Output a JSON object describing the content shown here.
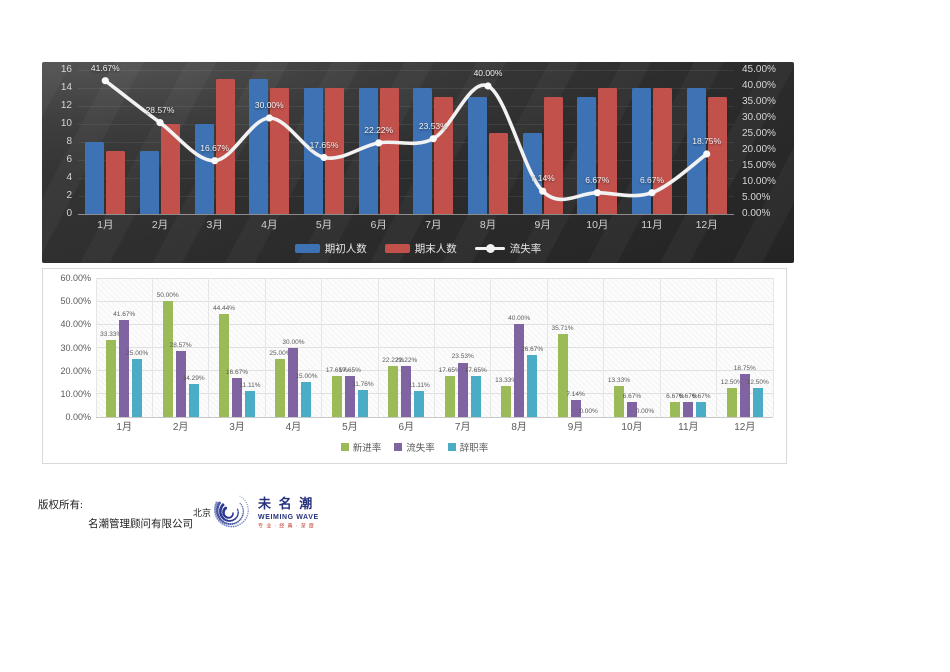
{
  "chart_data": [
    {
      "name": "headcount-turnover-combo",
      "type": "bar+line",
      "theme": {
        "background": "#2e2e2e",
        "text": "#d6d6d6"
      },
      "categories": [
        "1月",
        "2月",
        "3月",
        "4月",
        "5月",
        "6月",
        "7月",
        "8月",
        "9月",
        "10月",
        "11月",
        "12月"
      ],
      "series": [
        {
          "name": "期初人数",
          "type": "bar",
          "axis": "left",
          "color": "#3d72b4",
          "values": [
            8,
            7,
            10,
            15,
            14,
            14,
            14,
            13,
            9,
            13,
            14,
            14
          ]
        },
        {
          "name": "期末人数",
          "type": "bar",
          "axis": "left",
          "color": "#c2514c",
          "values": [
            7,
            10,
            15,
            14,
            14,
            14,
            13,
            9,
            13,
            14,
            14,
            13
          ]
        },
        {
          "name": "流失率",
          "type": "line",
          "axis": "right",
          "color": "#f2f2f2",
          "values": [
            41.67,
            28.57,
            16.67,
            30,
            17.65,
            22.22,
            23.53,
            40,
            7.14,
            6.67,
            6.67,
            18.75
          ]
        }
      ],
      "left_axis": {
        "min": 0,
        "max": 16,
        "ticks": [
          "16",
          "14",
          "12",
          "10",
          "8",
          "6",
          "4",
          "2",
          "0"
        ]
      },
      "right_axis": {
        "min": 0,
        "max": 45,
        "ticks": [
          "45.00%",
          "40.00%",
          "35.00%",
          "30.00%",
          "25.00%",
          "20.00%",
          "15.00%",
          "10.00%",
          "5.00%",
          "0.00%"
        ]
      },
      "legend": [
        {
          "label": "期初人数",
          "marker": "bar",
          "color": "#3d72b4"
        },
        {
          "label": "期末人数",
          "marker": "bar",
          "color": "#c2514c"
        },
        {
          "label": "流失率",
          "marker": "line",
          "color": "#f2f2f2"
        }
      ],
      "legend_position": "bottom",
      "grid": true
    },
    {
      "name": "monthly-rates",
      "type": "bar",
      "theme": {
        "background": "#ffffff",
        "text": "#595959"
      },
      "categories": [
        "1月",
        "2月",
        "3月",
        "4月",
        "5月",
        "6月",
        "7月",
        "8月",
        "9月",
        "10月",
        "11月",
        "12月"
      ],
      "series": [
        {
          "name": "新进率",
          "color": "#9bbb59",
          "values": [
            33.33,
            50,
            44.44,
            25,
            17.65,
            22.22,
            17.65,
            13.33,
            35.71,
            13.33,
            6.67,
            12.5
          ]
        },
        {
          "name": "流失率",
          "color": "#8064a2",
          "values": [
            41.67,
            28.57,
            16.67,
            30,
            17.65,
            22.22,
            23.53,
            40,
            7.14,
            6.67,
            6.67,
            18.75
          ]
        },
        {
          "name": "辞职率",
          "color": "#4bacc6",
          "values": [
            25,
            14.29,
            11.11,
            15,
            11.76,
            11.11,
            17.65,
            26.67,
            0,
            0,
            6.67,
            12.5
          ]
        }
      ],
      "y_axis": {
        "min": 0,
        "max": 60,
        "ticks": [
          "60.00%",
          "50.00%",
          "40.00%",
          "30.00%",
          "20.00%",
          "10.00%",
          "0.00%"
        ]
      },
      "legend": [
        {
          "label": "新进率",
          "color": "#9bbb59"
        },
        {
          "label": "流失率",
          "color": "#8064a2"
        },
        {
          "label": "辞职率",
          "color": "#4bacc6"
        }
      ],
      "legend_position": "bottom",
      "grid": true,
      "data_labels": true
    }
  ],
  "footer": {
    "copyright_label": "版权所有:",
    "company": "名潮管理顾问有限公司",
    "logo_prefix": "北京",
    "logo_cn": "未 名 潮",
    "logo_en": "WEIMING WAVE",
    "logo_tagline": "专 业 · 经 典 · 深 度",
    "logo_color": "#26317e"
  }
}
